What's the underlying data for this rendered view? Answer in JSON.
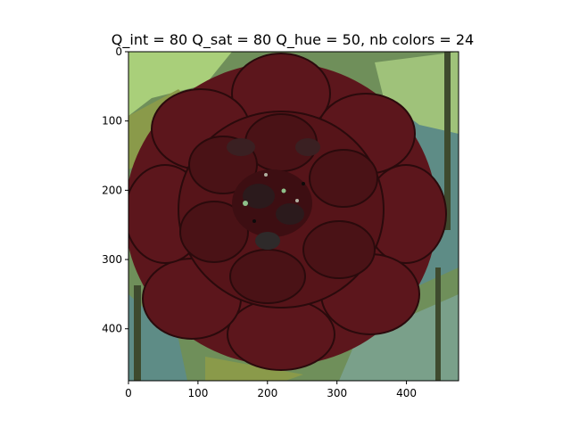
{
  "figure": {
    "title": "Q_int = 80 Q_sat = 80 Q_hue = 50, nb colors = 24"
  },
  "axes": {
    "x_ticks": [
      "0",
      "100",
      "200",
      "300",
      "400"
    ],
    "y_ticks": [
      "0",
      "100",
      "200",
      "300",
      "400"
    ],
    "x_tick_values": [
      0,
      100,
      200,
      300,
      400
    ],
    "y_tick_values": [
      0,
      100,
      200,
      300,
      400
    ],
    "x_range": [
      0,
      475
    ],
    "y_range": [
      0,
      475
    ]
  },
  "image": {
    "subject": "dark red dahlia flower on green foliage background, color-quantized",
    "colors": {
      "petal": "#5c161c",
      "petal_dark": "#3d0e12",
      "petal_shadow": "#2a0a0c",
      "center": "#2b1a1c",
      "bg_green": "#6f8f5a",
      "bg_light": "#a9cf7a",
      "bg_teal": "#5e8c86",
      "bg_olive": "#8a9a4a",
      "stem": "#3e4a2e"
    }
  }
}
